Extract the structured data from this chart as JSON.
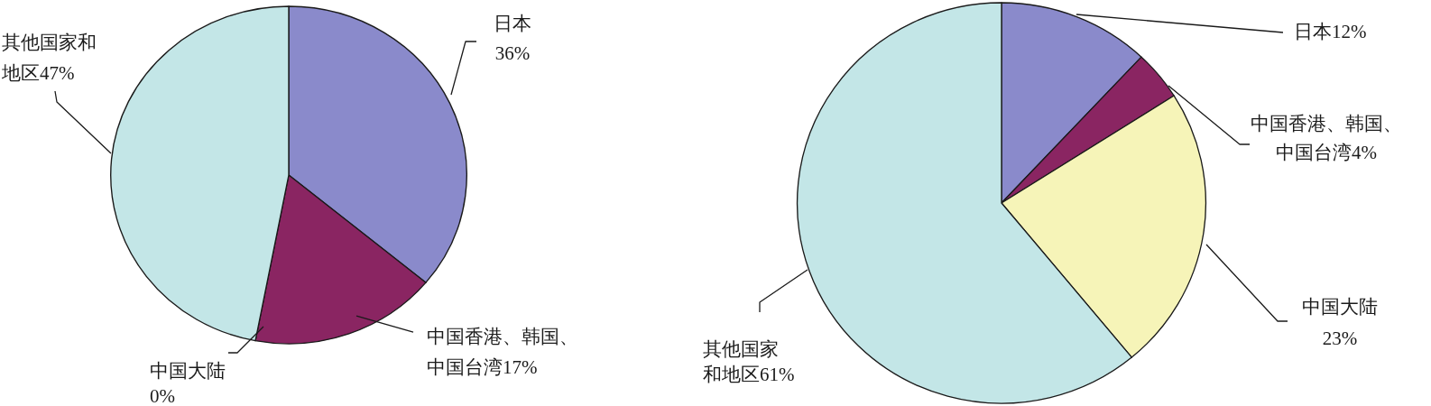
{
  "chart_data": [
    {
      "type": "pie",
      "categories": [
        "日本",
        "中国香港、韩国、中国台湾",
        "中国大陆",
        "其他国家和地区"
      ],
      "values": [
        36,
        17,
        0,
        47
      ],
      "value_labels": [
        "36%",
        "17%",
        "0%",
        "47%"
      ],
      "colors": [
        "#8a8acb",
        "#8a2562",
        null,
        "#c3e6e7"
      ]
    },
    {
      "type": "pie",
      "categories": [
        "日本",
        "中国香港、韩国、中国台湾",
        "中国大陆",
        "其他国家和地区"
      ],
      "values": [
        12,
        4,
        23,
        61
      ],
      "value_labels": [
        "12%",
        "4%",
        "23%",
        "61%"
      ],
      "colors": [
        "#8a8acb",
        "#8a2562",
        "#f6f4b8",
        "#c3e6e7"
      ]
    }
  ]
}
